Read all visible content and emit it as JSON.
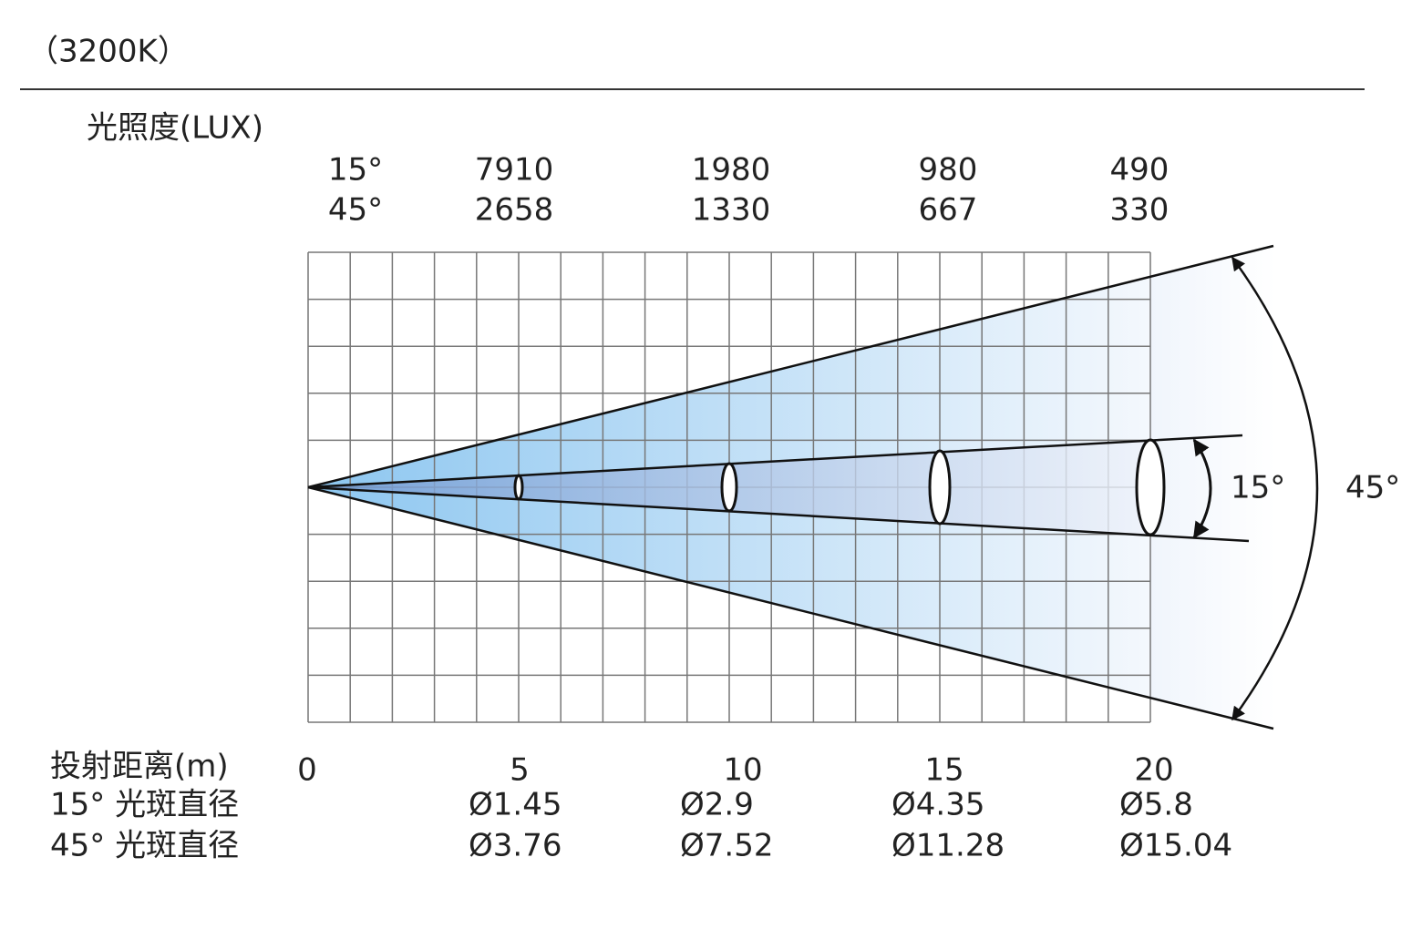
{
  "header": {
    "title": "（3200K）"
  },
  "illuminance": {
    "title": "光照度(LUX)",
    "rows": [
      {
        "label": "15°",
        "values": [
          "7910",
          "1980",
          "980",
          "490"
        ]
      },
      {
        "label": "45°",
        "values": [
          "2658",
          "1330",
          "667",
          "330"
        ]
      }
    ]
  },
  "distance": {
    "title": "投射距离(m)",
    "values": [
      "0",
      "5",
      "10",
      "15",
      "20"
    ]
  },
  "diameters": {
    "rows": [
      {
        "label": "15° 光斑直径",
        "values": [
          "Ø1.45",
          "Ø2.9",
          "Ø4.35",
          "Ø5.8"
        ]
      },
      {
        "label": "45° 光斑直径",
        "values": [
          "Ø3.76",
          "Ø7.52",
          "Ø11.28",
          "Ø15.04"
        ]
      }
    ]
  },
  "angles": {
    "narrow": "15°",
    "wide": "45°"
  }
}
